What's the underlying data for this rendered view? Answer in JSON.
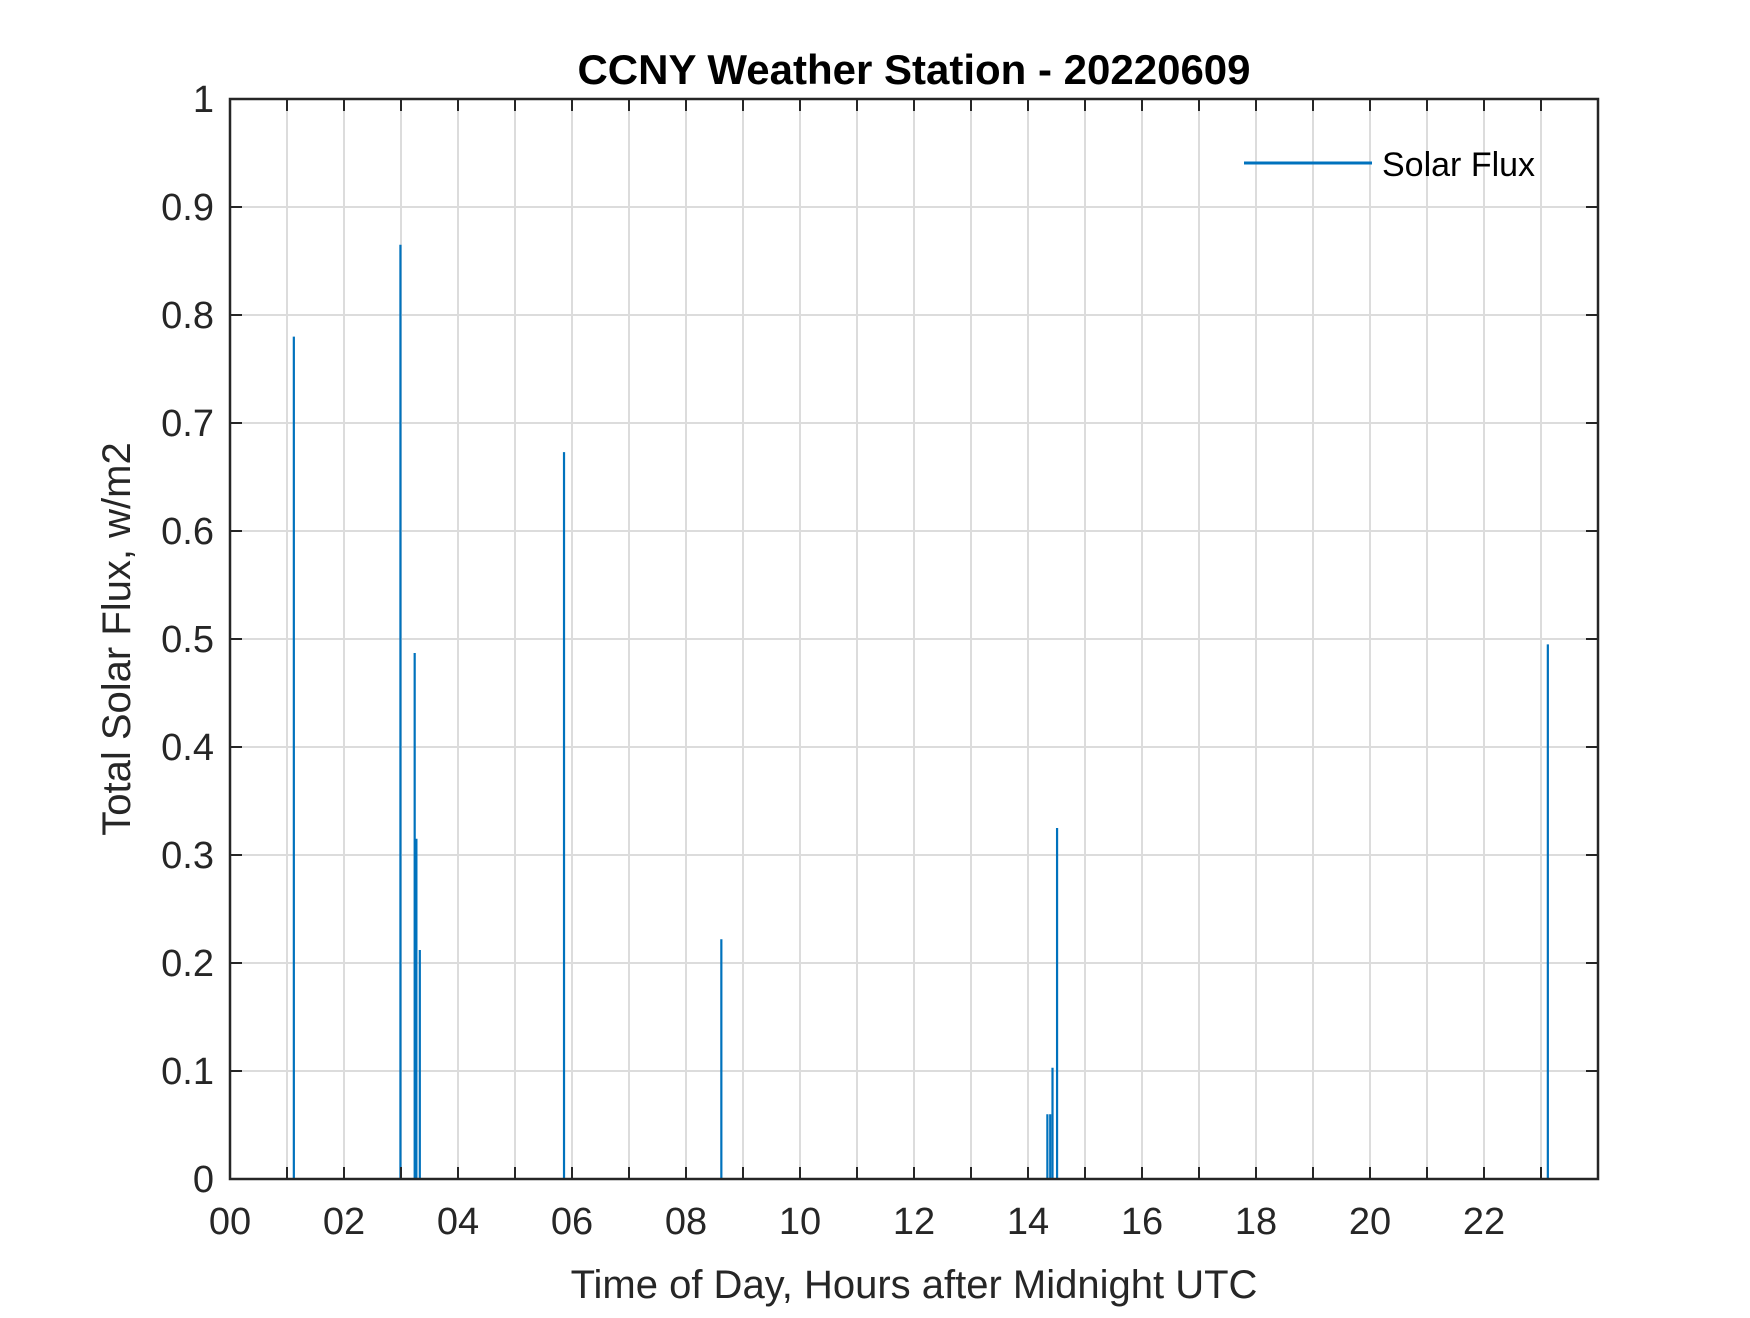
{
  "chart_data": {
    "type": "line",
    "title": "CCNY Weather Station - 20220609",
    "xlabel": "Time of Day, Hours after Midnight UTC",
    "ylabel": "Total Solar Flux, w/m2",
    "xlim": [
      0,
      24
    ],
    "ylim": [
      0,
      1
    ],
    "xticks": [
      0,
      2,
      4,
      6,
      8,
      10,
      12,
      14,
      16,
      18,
      20,
      22
    ],
    "xtick_labels": [
      "00",
      "02",
      "04",
      "06",
      "08",
      "10",
      "12",
      "14",
      "16",
      "18",
      "20",
      "22"
    ],
    "yticks": [
      0,
      0.1,
      0.2,
      0.3,
      0.4,
      0.5,
      0.6,
      0.7,
      0.8,
      0.9,
      1
    ],
    "ytick_labels": [
      "0",
      "0.1",
      "0.2",
      "0.3",
      "0.4",
      "0.5",
      "0.6",
      "0.7",
      "0.8",
      "0.9",
      "1"
    ],
    "grid": true,
    "legend_position": "top-right",
    "series": [
      {
        "name": "Solar Flux",
        "color": "#0072BD",
        "spikes": [
          {
            "x": 1.12,
            "y": 0.78
          },
          {
            "x": 2.99,
            "y": 0.865
          },
          {
            "x": 3.24,
            "y": 0.487
          },
          {
            "x": 3.27,
            "y": 0.315
          },
          {
            "x": 3.33,
            "y": 0.212
          },
          {
            "x": 5.86,
            "y": 0.673
          },
          {
            "x": 8.62,
            "y": 0.222
          },
          {
            "x": 14.34,
            "y": 0.06
          },
          {
            "x": 14.39,
            "y": 0.06
          },
          {
            "x": 14.43,
            "y": 0.103
          },
          {
            "x": 14.51,
            "y": 0.325
          },
          {
            "x": 23.12,
            "y": 0.495
          }
        ]
      }
    ]
  }
}
